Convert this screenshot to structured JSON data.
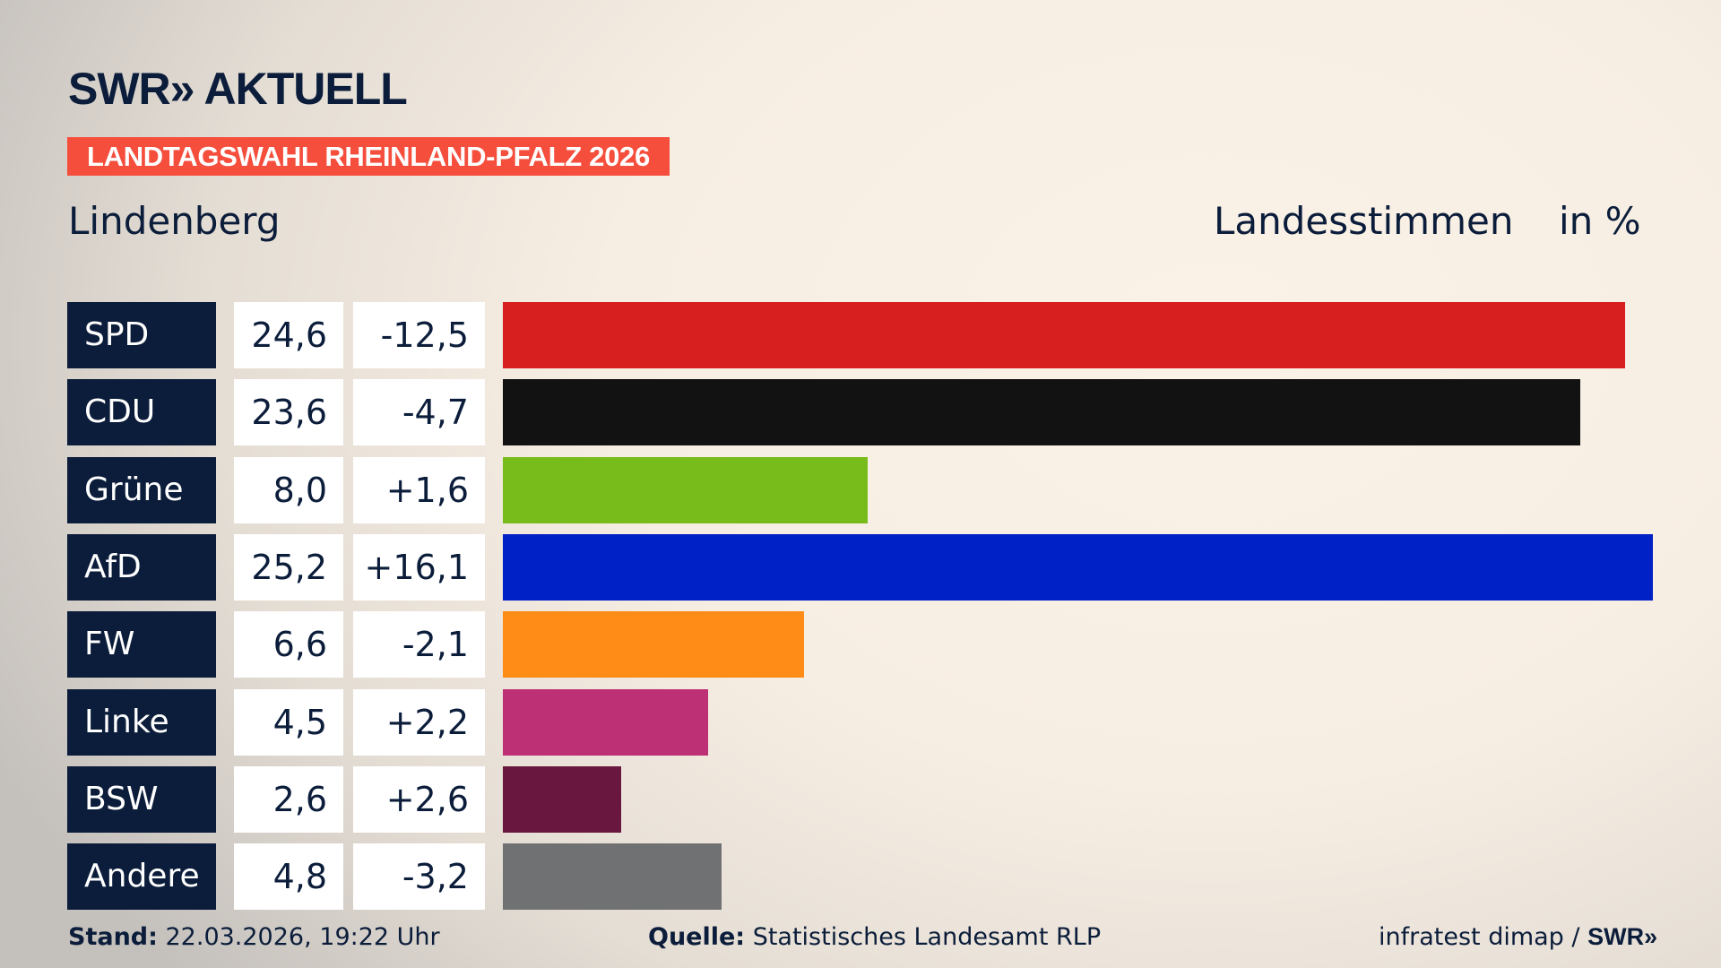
{
  "header": {
    "logo_text": "SWR» AKTUELL",
    "banner": "LANDTAGSWAHL RHEINLAND-PFALZ 2026",
    "region": "Lindenberg",
    "metric": "Landesstimmen",
    "unit": "in %"
  },
  "chart_data": {
    "type": "bar",
    "orientation": "horizontal",
    "categories": [
      "SPD",
      "CDU",
      "Grüne",
      "AfD",
      "FW",
      "Linke",
      "BSW",
      "Andere"
    ],
    "values": [
      24.6,
      23.6,
      8.0,
      25.2,
      6.6,
      4.5,
      2.6,
      4.8
    ],
    "labels": [
      "24,6",
      "23,6",
      "8,0",
      "25,2",
      "6,6",
      "4,5",
      "2,6",
      "4,8"
    ],
    "diffs": [
      "-12,5",
      "-4,7",
      "+1,6",
      "+16,1",
      "-2,1",
      "+2,2",
      "+2,6",
      "-3,2"
    ],
    "colors": [
      "#d71f1f",
      "#121212",
      "#78bc1b",
      "#0021c6",
      "#ff8c16",
      "#be3075",
      "#6a173f",
      "#707173"
    ],
    "xlim": [
      0,
      25.2
    ]
  },
  "footer": {
    "stand_label": "Stand:",
    "stand_value": " 22.03.2026, 19:22 Uhr",
    "source_label": "Quelle:",
    "source_value": " Statistisches Landesamt RLP",
    "credit": "infratest dimap / ",
    "credit_logo": "SWR»"
  }
}
